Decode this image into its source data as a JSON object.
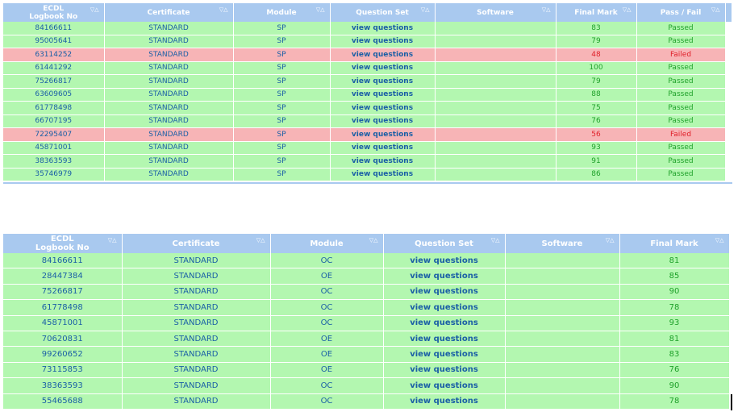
{
  "table1": {
    "headers": {
      "ecdl_line1": "ECDL",
      "ecdl_line2": "Logbook No",
      "certificate": "Certificate",
      "module": "Module",
      "question_set": "Question Set",
      "software": "Software",
      "final_mark": "Final Mark",
      "pass_fail": "Pass / Fail"
    },
    "sort_icons": "▽△",
    "rows": [
      {
        "id": "84166611",
        "cert": "STANDARD",
        "module": "SP",
        "qs": "view questions",
        "software": "",
        "mark": "83",
        "status": "Passed"
      },
      {
        "id": "95005641",
        "cert": "STANDARD",
        "module": "SP",
        "qs": "view questions",
        "software": "",
        "mark": "79",
        "status": "Passed"
      },
      {
        "id": "63114252",
        "cert": "STANDARD",
        "module": "SP",
        "qs": "view questions",
        "software": "",
        "mark": "48",
        "status": "Failed"
      },
      {
        "id": "61441292",
        "cert": "STANDARD",
        "module": "SP",
        "qs": "view questions",
        "software": "",
        "mark": "100",
        "status": "Passed"
      },
      {
        "id": "75266817",
        "cert": "STANDARD",
        "module": "SP",
        "qs": "view questions",
        "software": "",
        "mark": "79",
        "status": "Passed"
      },
      {
        "id": "63609605",
        "cert": "STANDARD",
        "module": "SP",
        "qs": "view questions",
        "software": "",
        "mark": "88",
        "status": "Passed"
      },
      {
        "id": "61778498",
        "cert": "STANDARD",
        "module": "SP",
        "qs": "view questions",
        "software": "",
        "mark": "75",
        "status": "Passed"
      },
      {
        "id": "66707195",
        "cert": "STANDARD",
        "module": "SP",
        "qs": "view questions",
        "software": "",
        "mark": "76",
        "status": "Passed"
      },
      {
        "id": "72295407",
        "cert": "STANDARD",
        "module": "SP",
        "qs": "view questions",
        "software": "",
        "mark": "56",
        "status": "Failed"
      },
      {
        "id": "45871001",
        "cert": "STANDARD",
        "module": "SP",
        "qs": "view questions",
        "software": "",
        "mark": "93",
        "status": "Passed"
      },
      {
        "id": "38363593",
        "cert": "STANDARD",
        "module": "SP",
        "qs": "view questions",
        "software": "",
        "mark": "91",
        "status": "Passed"
      },
      {
        "id": "35746979",
        "cert": "STANDARD",
        "module": "SP",
        "qs": "view questions",
        "software": "",
        "mark": "86",
        "status": "Passed"
      }
    ]
  },
  "table2": {
    "headers": {
      "ecdl_line1": "ECDL",
      "ecdl_line2": "Logbook No",
      "certificate": "Certificate",
      "module": "Module",
      "question_set": "Question Set",
      "software": "Software",
      "final_mark": "Final Mark"
    },
    "sort_icons": "▽△",
    "rows": [
      {
        "id": "84166611",
        "cert": "STANDARD",
        "module": "OC",
        "qs": "view questions",
        "software": "",
        "mark": "81"
      },
      {
        "id": "28447384",
        "cert": "STANDARD",
        "module": "OE",
        "qs": "view questions",
        "software": "",
        "mark": "85"
      },
      {
        "id": "75266817",
        "cert": "STANDARD",
        "module": "OC",
        "qs": "view questions",
        "software": "",
        "mark": "90"
      },
      {
        "id": "61778498",
        "cert": "STANDARD",
        "module": "OC",
        "qs": "view questions",
        "software": "",
        "mark": "78"
      },
      {
        "id": "45871001",
        "cert": "STANDARD",
        "module": "OC",
        "qs": "view questions",
        "software": "",
        "mark": "93"
      },
      {
        "id": "70620831",
        "cert": "STANDARD",
        "module": "OE",
        "qs": "view questions",
        "software": "",
        "mark": "81"
      },
      {
        "id": "99260652",
        "cert": "STANDARD",
        "module": "OE",
        "qs": "view questions",
        "software": "",
        "mark": "83"
      },
      {
        "id": "73115853",
        "cert": "STANDARD",
        "module": "OE",
        "qs": "view questions",
        "software": "",
        "mark": "76"
      },
      {
        "id": "38363593",
        "cert": "STANDARD",
        "module": "OC",
        "qs": "view questions",
        "software": "",
        "mark": "90"
      },
      {
        "id": "55465688",
        "cert": "STANDARD",
        "module": "OC",
        "qs": "view questions",
        "software": "",
        "mark": "78"
      }
    ]
  },
  "colors": {
    "header_bg": "#a9c9ef",
    "pass_row_bg": "#b3f7b0",
    "fail_row_bg": "#f7b4b6",
    "text_blue": "#1a5fa6",
    "pass_green": "#1fa12a",
    "fail_red": "#e0202a"
  }
}
